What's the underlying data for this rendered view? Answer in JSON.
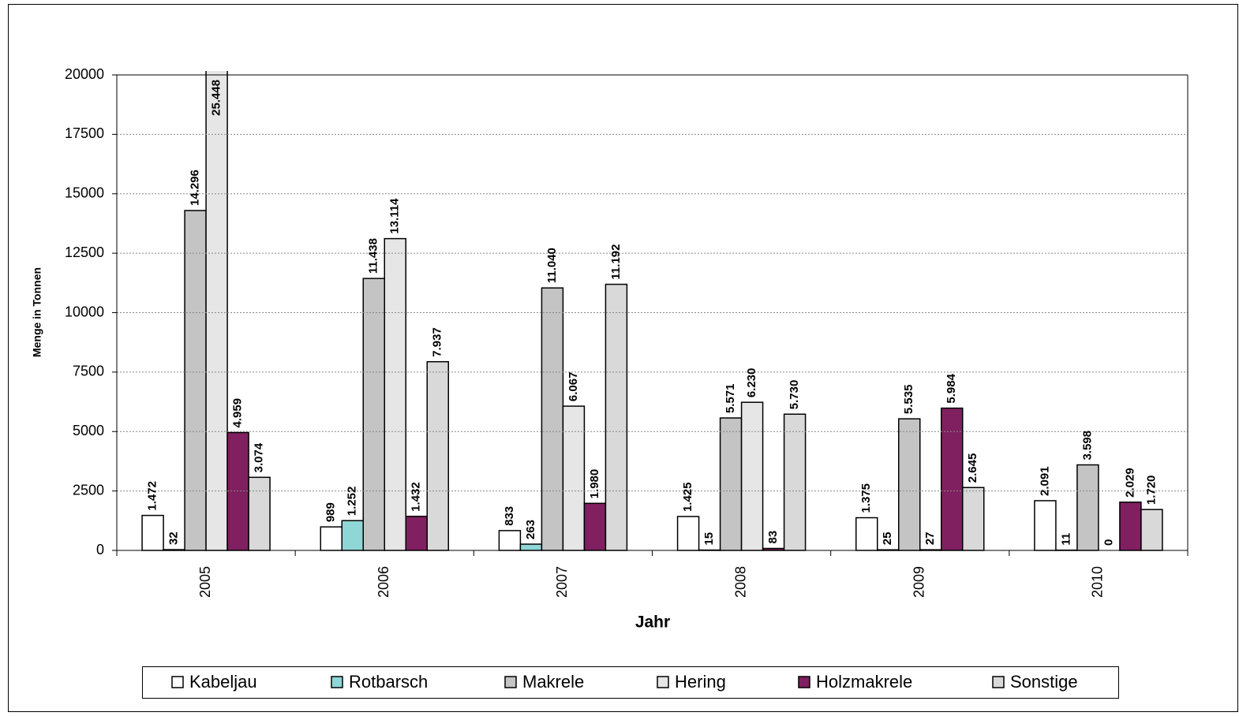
{
  "chart_data": {
    "type": "bar",
    "y_label": "Menge in Tonnen",
    "x_label": "Jahr",
    "categories": [
      "2005",
      "2006",
      "2007",
      "2008",
      "2009",
      "2010"
    ],
    "series": [
      {
        "name": "Kabeljau",
        "color": "#ffffff",
        "values": [
          1472,
          989,
          833,
          1425,
          1375,
          2091
        ],
        "value_labels": [
          "1.472",
          "989",
          "833",
          "1.425",
          "1.375",
          "2.091"
        ]
      },
      {
        "name": "Rotbarsch",
        "color": "#8fd6d6",
        "values": [
          32,
          1252,
          263,
          15,
          25,
          11
        ],
        "value_labels": [
          "32",
          "1.252",
          "263",
          "15",
          "25",
          "11"
        ]
      },
      {
        "name": "Makrele",
        "color": "#c4c4c4",
        "values": [
          14296,
          11438,
          11040,
          5571,
          5535,
          3598
        ],
        "value_labels": [
          "14.296",
          "11.438",
          "11.040",
          "5.571",
          "5.535",
          "3.598"
        ]
      },
      {
        "name": "Hering",
        "color": "#e6e6e6",
        "values": [
          25448,
          13114,
          6067,
          6230,
          27,
          0
        ],
        "value_labels": [
          "25.448",
          "13.114",
          "6.067",
          "6.230",
          "27",
          "0"
        ]
      },
      {
        "name": "Holzmakrele",
        "color": "#802060",
        "values": [
          4959,
          1432,
          1980,
          83,
          5984,
          2029
        ],
        "value_labels": [
          "4.959",
          "1.432",
          "1.980",
          "83",
          "5.984",
          "2.029"
        ]
      },
      {
        "name": "Sonstige",
        "color": "#d9d9d9",
        "values": [
          3074,
          7937,
          11192,
          5730,
          2645,
          1720
        ],
        "value_labels": [
          "3.074",
          "7.937",
          "11.192",
          "5.730",
          "2.645",
          "1.720"
        ]
      }
    ],
    "ylim": [
      0,
      20000
    ],
    "yticks": [
      0,
      2500,
      5000,
      7500,
      10000,
      12500,
      15000,
      17500,
      20000
    ],
    "grid": true
  }
}
